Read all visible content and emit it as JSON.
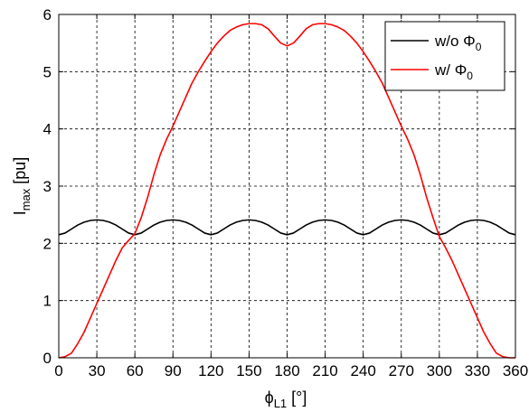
{
  "chart_data": {
    "type": "line",
    "title": "",
    "xlabel_main": "ϕ",
    "xlabel_sub": "L1",
    "xlabel_unit": " [°]",
    "ylabel_main": "I",
    "ylabel_sub": "max",
    "ylabel_unit": " [pu]",
    "xlim": [
      0,
      360
    ],
    "ylim": [
      0,
      6
    ],
    "xticks": [
      "0",
      "30",
      "60",
      "90",
      "120",
      "150",
      "180",
      "210",
      "240",
      "270",
      "300",
      "330",
      "360"
    ],
    "yticks": [
      "0",
      "1",
      "2",
      "3",
      "4",
      "5",
      "6"
    ],
    "grid": true,
    "legend_position": "top-right",
    "series": [
      {
        "name_main": "w/o Φ",
        "name_sub": "0",
        "color": "#000000",
        "x": [
          0,
          5,
          10,
          15,
          20,
          25,
          30,
          35,
          40,
          45,
          50,
          55,
          60,
          65,
          70,
          75,
          80,
          85,
          90,
          95,
          100,
          105,
          110,
          115,
          120,
          125,
          130,
          135,
          140,
          145,
          150,
          155,
          160,
          165,
          170,
          175,
          180,
          185,
          190,
          195,
          200,
          205,
          210,
          215,
          220,
          225,
          230,
          235,
          240,
          245,
          250,
          255,
          260,
          265,
          270,
          275,
          280,
          285,
          290,
          295,
          300,
          305,
          310,
          315,
          320,
          325,
          330,
          335,
          340,
          345,
          350,
          355,
          360
        ],
        "y": [
          2.15,
          2.18,
          2.25,
          2.32,
          2.37,
          2.4,
          2.41,
          2.4,
          2.37,
          2.32,
          2.25,
          2.18,
          2.15,
          2.18,
          2.25,
          2.32,
          2.37,
          2.4,
          2.41,
          2.4,
          2.37,
          2.32,
          2.25,
          2.18,
          2.15,
          2.18,
          2.25,
          2.32,
          2.37,
          2.4,
          2.41,
          2.4,
          2.37,
          2.32,
          2.25,
          2.18,
          2.15,
          2.18,
          2.25,
          2.32,
          2.37,
          2.4,
          2.41,
          2.4,
          2.37,
          2.32,
          2.25,
          2.18,
          2.15,
          2.18,
          2.25,
          2.32,
          2.37,
          2.4,
          2.41,
          2.4,
          2.37,
          2.32,
          2.25,
          2.18,
          2.15,
          2.18,
          2.25,
          2.32,
          2.37,
          2.4,
          2.41,
          2.4,
          2.37,
          2.32,
          2.25,
          2.18,
          2.15
        ]
      },
      {
        "name_main": "w/ Φ",
        "name_sub": "0",
        "color": "#ff0000",
        "x": [
          0,
          5,
          10,
          15,
          20,
          25,
          30,
          35,
          40,
          45,
          50,
          55,
          60,
          65,
          70,
          75,
          80,
          85,
          90,
          95,
          100,
          105,
          110,
          115,
          120,
          125,
          130,
          135,
          140,
          145,
          150,
          155,
          160,
          165,
          170,
          175,
          180,
          185,
          190,
          195,
          200,
          205,
          210,
          215,
          220,
          225,
          230,
          235,
          240,
          245,
          250,
          255,
          260,
          265,
          270,
          275,
          280,
          285,
          290,
          295,
          300,
          305,
          310,
          315,
          320,
          325,
          330,
          335,
          340,
          345,
          350,
          355,
          360
        ],
        "y": [
          0.0,
          0.02,
          0.08,
          0.25,
          0.45,
          0.7,
          0.95,
          1.2,
          1.45,
          1.7,
          1.92,
          2.05,
          2.17,
          2.45,
          2.8,
          3.2,
          3.55,
          3.82,
          4.05,
          4.3,
          4.55,
          4.8,
          5.0,
          5.18,
          5.35,
          5.5,
          5.62,
          5.72,
          5.78,
          5.82,
          5.84,
          5.84,
          5.82,
          5.75,
          5.62,
          5.5,
          5.45,
          5.5,
          5.62,
          5.75,
          5.82,
          5.84,
          5.84,
          5.82,
          5.78,
          5.72,
          5.62,
          5.5,
          5.35,
          5.18,
          5.0,
          4.8,
          4.55,
          4.3,
          4.05,
          3.82,
          3.55,
          3.2,
          2.8,
          2.45,
          2.12,
          1.92,
          1.7,
          1.45,
          1.2,
          0.95,
          0.7,
          0.45,
          0.25,
          0.08,
          0.02,
          0.0,
          0.0
        ]
      }
    ]
  }
}
